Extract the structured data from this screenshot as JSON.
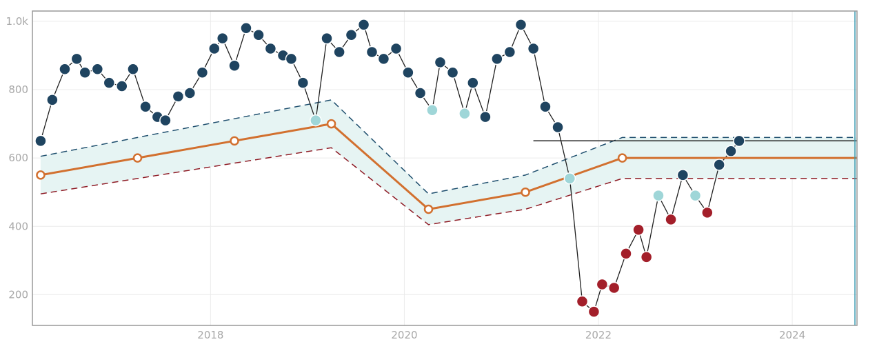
{
  "chart_data": {
    "type": "line",
    "title": "",
    "xlabel": "",
    "ylabel": "",
    "xlim": [
      "2016-03-01",
      "2024-09-01"
    ],
    "ylim": [
      110,
      1030
    ],
    "grid": true,
    "x_ticks": [
      {
        "date": "2018-01-01",
        "label": "2018"
      },
      {
        "date": "2020-01-01",
        "label": "2020"
      },
      {
        "date": "2022-01-01",
        "label": "2022"
      },
      {
        "date": "2024-01-01",
        "label": "2024"
      }
    ],
    "y_ticks": [
      {
        "value": 200,
        "label": "200"
      },
      {
        "value": 400,
        "label": "400"
      },
      {
        "value": 600,
        "label": "600"
      },
      {
        "value": 800,
        "label": "800"
      },
      {
        "value": 1000,
        "label": "1.0k"
      }
    ],
    "colors": {
      "observed_line": "#1f1f1f",
      "observed_point": "#1f4460",
      "observed_point_near_band": "#9fd6d8",
      "observed_point_below_band": "#a31f2a",
      "baseline": "#d2702f",
      "upper_band": "#1f4f6e",
      "lower_band": "#8e1b25",
      "band_fill": "#e6f4f3",
      "current_marker": "#3a9ab0",
      "grid": "#ebebeb",
      "frame": "#999999",
      "tick_text": "#a8a8a8"
    },
    "series": [
      {
        "role": "observed",
        "points": [
          {
            "x": "2016-04-01",
            "y": 650,
            "status": "normal"
          },
          {
            "x": "2016-05-15",
            "y": 770,
            "status": "normal"
          },
          {
            "x": "2016-07-01",
            "y": 860,
            "status": "normal"
          },
          {
            "x": "2016-08-15",
            "y": 890,
            "status": "normal"
          },
          {
            "x": "2016-09-15",
            "y": 850,
            "status": "normal"
          },
          {
            "x": "2016-11-01",
            "y": 860,
            "status": "normal"
          },
          {
            "x": "2016-12-15",
            "y": 820,
            "status": "normal"
          },
          {
            "x": "2017-02-01",
            "y": 810,
            "status": "normal"
          },
          {
            "x": "2017-03-15",
            "y": 860,
            "status": "normal"
          },
          {
            "x": "2017-05-01",
            "y": 750,
            "status": "normal"
          },
          {
            "x": "2017-06-15",
            "y": 720,
            "status": "normal"
          },
          {
            "x": "2017-07-15",
            "y": 710,
            "status": "normal"
          },
          {
            "x": "2017-09-01",
            "y": 780,
            "status": "normal"
          },
          {
            "x": "2017-10-15",
            "y": 790,
            "status": "normal"
          },
          {
            "x": "2017-12-01",
            "y": 850,
            "status": "normal"
          },
          {
            "x": "2018-01-15",
            "y": 920,
            "status": "normal"
          },
          {
            "x": "2018-02-15",
            "y": 950,
            "status": "normal"
          },
          {
            "x": "2018-04-01",
            "y": 870,
            "status": "normal"
          },
          {
            "x": "2018-05-15",
            "y": 980,
            "status": "normal"
          },
          {
            "x": "2018-07-01",
            "y": 960,
            "status": "normal"
          },
          {
            "x": "2018-08-15",
            "y": 920,
            "status": "normal"
          },
          {
            "x": "2018-10-01",
            "y": 900,
            "status": "normal"
          },
          {
            "x": "2018-11-01",
            "y": 890,
            "status": "normal"
          },
          {
            "x": "2018-12-15",
            "y": 820,
            "status": "normal"
          },
          {
            "x": "2019-02-01",
            "y": 710,
            "status": "near"
          },
          {
            "x": "2019-03-15",
            "y": 950,
            "status": "normal"
          },
          {
            "x": "2019-05-01",
            "y": 910,
            "status": "normal"
          },
          {
            "x": "2019-06-15",
            "y": 960,
            "status": "normal"
          },
          {
            "x": "2019-08-01",
            "y": 990,
            "status": "normal"
          },
          {
            "x": "2019-09-01",
            "y": 910,
            "status": "normal"
          },
          {
            "x": "2019-10-15",
            "y": 890,
            "status": "normal"
          },
          {
            "x": "2019-12-01",
            "y": 920,
            "status": "normal"
          },
          {
            "x": "2020-01-15",
            "y": 850,
            "status": "normal"
          },
          {
            "x": "2020-03-01",
            "y": 790,
            "status": "normal"
          },
          {
            "x": "2020-04-15",
            "y": 740,
            "status": "near"
          },
          {
            "x": "2020-05-15",
            "y": 880,
            "status": "normal"
          },
          {
            "x": "2020-07-01",
            "y": 850,
            "status": "normal"
          },
          {
            "x": "2020-08-15",
            "y": 730,
            "status": "near"
          },
          {
            "x": "2020-09-15",
            "y": 820,
            "status": "normal"
          },
          {
            "x": "2020-11-01",
            "y": 720,
            "status": "normal"
          },
          {
            "x": "2020-12-15",
            "y": 890,
            "status": "normal"
          },
          {
            "x": "2021-02-01",
            "y": 910,
            "status": "normal"
          },
          {
            "x": "2021-03-15",
            "y": 990,
            "status": "normal"
          },
          {
            "x": "2021-05-01",
            "y": 920,
            "status": "normal"
          },
          {
            "x": "2021-06-15",
            "y": 750,
            "status": "normal"
          },
          {
            "x": "2021-08-01",
            "y": 690,
            "status": "normal"
          },
          {
            "x": "2021-09-15",
            "y": 540,
            "status": "near"
          },
          {
            "x": "2021-11-01",
            "y": 180,
            "status": "low"
          },
          {
            "x": "2021-12-15",
            "y": 150,
            "status": "low"
          },
          {
            "x": "2022-01-15",
            "y": 230,
            "status": "low"
          },
          {
            "x": "2022-03-01",
            "y": 220,
            "status": "low"
          },
          {
            "x": "2022-04-15",
            "y": 320,
            "status": "low"
          },
          {
            "x": "2022-06-01",
            "y": 390,
            "status": "low"
          },
          {
            "x": "2022-07-01",
            "y": 310,
            "status": "low"
          },
          {
            "x": "2022-08-15",
            "y": 490,
            "status": "near"
          },
          {
            "x": "2022-10-01",
            "y": 420,
            "status": "low"
          },
          {
            "x": "2022-11-15",
            "y": 550,
            "status": "normal"
          },
          {
            "x": "2023-01-01",
            "y": 490,
            "status": "near"
          },
          {
            "x": "2023-02-15",
            "y": 440,
            "status": "low"
          },
          {
            "x": "2023-04-01",
            "y": 580,
            "status": "normal"
          },
          {
            "x": "2023-05-15",
            "y": 620,
            "status": "normal"
          },
          {
            "x": "2023-06-15",
            "y": 650,
            "status": "normal"
          }
        ]
      },
      {
        "role": "baseline",
        "points": [
          {
            "x": "2016-04-01",
            "y": 550
          },
          {
            "x": "2017-04-01",
            "y": 600
          },
          {
            "x": "2018-04-01",
            "y": 650
          },
          {
            "x": "2019-04-01",
            "y": 700
          },
          {
            "x": "2020-04-01",
            "y": 450
          },
          {
            "x": "2021-04-01",
            "y": 500
          },
          {
            "x": "2022-04-01",
            "y": 600
          },
          {
            "x": "2024-09-01",
            "y": 600
          }
        ]
      },
      {
        "role": "upper_band",
        "points": [
          {
            "x": "2016-04-01",
            "y": 605
          },
          {
            "x": "2019-04-01",
            "y": 770
          },
          {
            "x": "2020-04-01",
            "y": 495
          },
          {
            "x": "2021-04-01",
            "y": 550
          },
          {
            "x": "2022-04-01",
            "y": 660
          },
          {
            "x": "2024-09-01",
            "y": 660
          }
        ]
      },
      {
        "role": "lower_band",
        "points": [
          {
            "x": "2016-04-01",
            "y": 495
          },
          {
            "x": "2019-04-01",
            "y": 630
          },
          {
            "x": "2020-04-01",
            "y": 405
          },
          {
            "x": "2021-04-01",
            "y": 450
          },
          {
            "x": "2022-04-01",
            "y": 540
          },
          {
            "x": "2024-09-01",
            "y": 540
          }
        ]
      },
      {
        "role": "forecast_hold",
        "points": [
          {
            "x": "2021-05-01",
            "y": 650
          },
          {
            "x": "2024-09-01",
            "y": 650
          }
        ]
      }
    ],
    "current_marker": {
      "x": "2024-09-01"
    }
  }
}
